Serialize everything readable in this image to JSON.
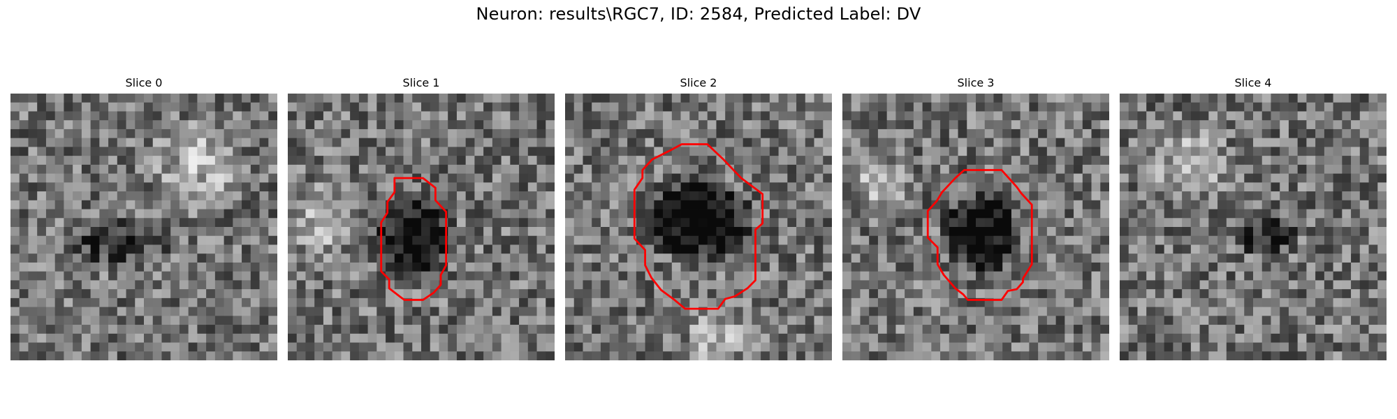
{
  "figure": {
    "title": "Neuron: results\\RGC7, ID: 2584, Predicted Label: DV"
  },
  "panels": [
    {
      "title": "Slice 0",
      "has_contour": false,
      "seed": 11,
      "blob_strength": 0.25,
      "contour_color": "#ff0000"
    },
    {
      "title": "Slice 1",
      "has_contour": true,
      "seed": 23,
      "blob_strength": 0.55,
      "contour_color": "#ff0000"
    },
    {
      "title": "Slice 2",
      "has_contour": true,
      "seed": 37,
      "blob_strength": 0.65,
      "contour_color": "#ff0000"
    },
    {
      "title": "Slice 3",
      "has_contour": true,
      "seed": 51,
      "blob_strength": 0.55,
      "contour_color": "#ff0000"
    },
    {
      "title": "Slice 4",
      "has_contour": false,
      "seed": 67,
      "blob_strength": 0.35,
      "contour_color": "#ff0000"
    }
  ],
  "colors": {
    "background": "#ffffff",
    "contour": "#ff0000",
    "colormap": "grayscale"
  }
}
